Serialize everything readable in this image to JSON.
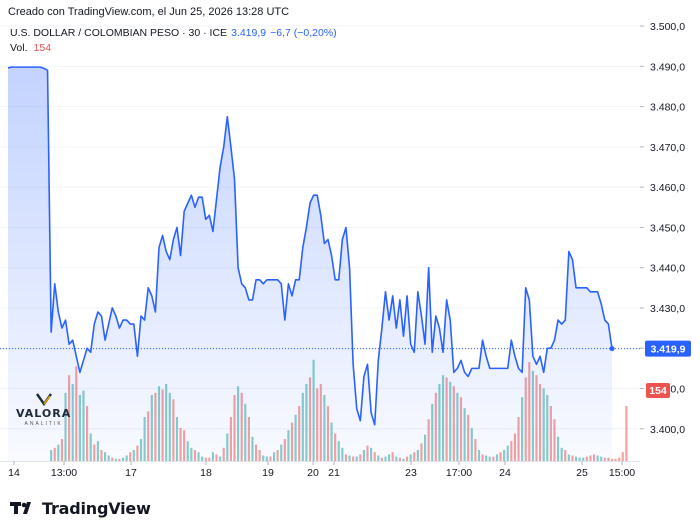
{
  "header": {
    "created_text": "Creado con TradingView.com, el Jun 25, 2026 13:28 UTC"
  },
  "symbol": {
    "title": "U.S. DOLLAR / COLOMBIAN PESO · 30 · ICE",
    "price": "3.419,9",
    "change": "−6,7 (−0,20%)"
  },
  "volume": {
    "label": "Vol.",
    "value": "154"
  },
  "watermark": {
    "name": "VALORA",
    "sub": "ANALITIK"
  },
  "footer": {
    "brand": "TradingView"
  },
  "colors": {
    "line": "#2962ff",
    "up_volume": "#26a69a",
    "down_volume": "#ef5350",
    "price_label_bg": "#2962ff",
    "volume_label_bg": "#ef5350"
  },
  "chart_data": {
    "type": "area",
    "title": "U.S. DOLLAR / COLOMBIAN PESO · 30 · ICE",
    "ylim": [
      3392,
      3502
    ],
    "y_ticks": [
      "3.400,0",
      "3.410,0",
      "3.420,0",
      "3.430,0",
      "3.440,0",
      "3.450,0",
      "3.460,0",
      "3.470,0",
      "3.480,0",
      "3.490,0",
      "3.500,0"
    ],
    "y_tick_values": [
      3400,
      3410,
      3420,
      3430,
      3440,
      3450,
      3460,
      3470,
      3480,
      3490,
      3500
    ],
    "x_ticks": [
      "14",
      "13:00",
      "17",
      "18",
      "19",
      "20",
      "21",
      "23",
      "17:00",
      "24",
      "25",
      "15:00"
    ],
    "last_price_label": "3.419,9",
    "last_price": 3419.9,
    "last_volume_label": "154",
    "series": [
      {
        "name": "Close",
        "values": [
          3489.6,
          3489.8,
          3489.8,
          3489.8,
          3489.8,
          3489.8,
          3489.8,
          3489.8,
          3489.8,
          3489.8,
          3489.5,
          3489.0,
          3424.0,
          3436.0,
          3429.0,
          3425.0,
          3427.0,
          3421.0,
          3422.0,
          3418.0,
          3414.0,
          3417.0,
          3420.0,
          3419.0,
          3426.0,
          3429.0,
          3428.0,
          3422.0,
          3426.0,
          3430.0,
          3428.0,
          3425.0,
          3427.0,
          3427.0,
          3426.0,
          3426.0,
          3418.0,
          3428.0,
          3427.0,
          3435.0,
          3433.0,
          3429.0,
          3445.0,
          3448.0,
          3444.0,
          3442.0,
          3447.0,
          3450.0,
          3443.0,
          3454.0,
          3456.0,
          3458.0,
          3455.0,
          3457.5,
          3457.5,
          3452.0,
          3453.0,
          3449.0,
          3457.0,
          3465.0,
          3470.0,
          3477.5,
          3470.0,
          3462.0,
          3440.0,
          3436.0,
          3435.0,
          3432.0,
          3432.0,
          3437.0,
          3437.0,
          3436.0,
          3437.0,
          3437.0,
          3437.0,
          3437.0,
          3436.0,
          3427.0,
          3436.0,
          3433.0,
          3437.0,
          3437.0,
          3445.0,
          3450.0,
          3456.0,
          3458.0,
          3458.0,
          3453.0,
          3446.0,
          3447.0,
          3443.0,
          3437.0,
          3437.0,
          3447.0,
          3450.0,
          3440.0,
          3416.0,
          3405.0,
          3402.0,
          3413.0,
          3416.0,
          3404.0,
          3401.0,
          3417.0,
          3425.0,
          3434.0,
          3427.0,
          3433.0,
          3425.0,
          3432.0,
          3423.0,
          3433.0,
          3421.0,
          3419.0,
          3434.0,
          3428.0,
          3421.0,
          3440.0,
          3419.0,
          3428.0,
          3425.0,
          3419.0,
          3432.0,
          3427.0,
          3414.0,
          3415.0,
          3417.0,
          3414.0,
          3413.0,
          3415.0,
          3415.0,
          3415.0,
          3422.0,
          3418.0,
          3415.0,
          3415.0,
          3415.0,
          3415.0,
          3415.0,
          3415.0,
          3422.0,
          3418.0,
          3415.0,
          3414.0,
          3435.0,
          3432.0,
          3418.0,
          3416.0,
          3418.0,
          3414.0,
          3420.0,
          3420.0,
          3422.0,
          3427.0,
          3426.0,
          3427.0,
          3444.0,
          3442.0,
          3435.0,
          3435.0,
          3435.0,
          3435.0,
          3434.0,
          3434.0,
          3434.0,
          3431.0,
          3427.0,
          3426.0,
          3419.9
        ]
      }
    ],
    "volume_values": [
      0,
      0,
      0,
      0,
      0,
      0,
      0,
      0,
      0,
      0,
      0,
      0,
      10,
      12,
      15,
      20,
      62,
      78,
      70,
      86,
      60,
      64,
      50,
      25,
      15,
      18,
      10,
      8,
      5,
      3,
      2,
      2,
      3,
      5,
      8,
      10,
      14,
      20,
      40,
      45,
      60,
      62,
      68,
      65,
      70,
      62,
      56,
      40,
      30,
      28,
      18,
      12,
      10,
      8,
      4,
      3,
      3,
      8,
      6,
      4,
      12,
      25,
      40,
      60,
      68,
      62,
      52,
      40,
      22,
      15,
      10,
      5,
      4,
      4,
      8,
      10,
      15,
      20,
      28,
      35,
      42,
      50,
      62,
      70,
      76,
      92,
      66,
      70,
      60,
      50,
      35,
      25,
      18,
      12,
      6,
      5,
      4,
      4,
      6,
      10,
      14,
      12,
      8,
      5,
      3,
      4,
      6,
      8,
      4,
      3,
      2,
      4,
      6,
      8,
      10,
      16,
      24,
      38,
      52,
      62,
      70,
      78,
      76,
      72,
      68,
      62,
      58,
      48,
      42,
      30,
      20,
      10,
      6,
      5,
      4,
      4,
      6,
      8,
      10,
      14,
      18,
      25,
      40,
      58,
      76,
      90,
      82,
      78,
      70,
      66,
      60,
      50,
      38,
      22,
      12,
      10,
      6,
      5,
      4,
      3,
      3,
      4,
      5,
      6,
      5,
      4,
      3,
      3,
      2,
      2,
      3,
      8,
      50
    ],
    "volume_up": [
      1,
      1,
      1,
      1,
      1,
      1,
      1,
      1,
      1,
      1,
      1,
      1,
      1,
      0,
      1,
      0,
      1,
      0,
      1,
      0,
      1,
      1,
      0,
      1,
      0,
      1,
      0,
      1,
      1,
      0,
      1,
      0,
      1,
      1,
      0,
      1,
      0,
      1,
      1,
      0,
      1,
      0,
      1,
      0,
      1,
      1,
      0,
      1,
      0,
      0,
      1,
      1,
      0,
      1,
      1,
      0,
      0,
      1,
      0,
      1,
      0,
      1,
      0,
      0,
      1,
      0,
      1,
      0,
      1,
      0,
      0,
      1,
      1,
      0,
      1,
      0,
      1,
      0,
      1,
      0,
      1,
      0,
      1,
      1,
      0,
      1,
      0,
      0,
      1,
      0,
      1,
      0,
      1,
      1,
      0,
      1,
      0,
      1,
      0,
      1,
      0,
      1,
      0,
      1,
      0,
      1,
      1,
      0,
      1,
      0,
      1,
      0,
      1,
      0,
      1,
      0,
      1,
      0,
      1,
      0,
      1,
      1,
      0,
      1,
      0,
      1,
      0,
      1,
      0,
      1,
      0,
      1,
      0,
      1,
      1,
      0,
      1,
      0,
      1,
      1,
      0,
      0,
      0,
      1,
      0,
      0,
      1,
      0,
      0,
      1,
      1,
      0,
      0,
      1,
      1,
      0,
      1,
      0,
      1,
      1,
      1,
      0,
      0,
      0,
      1,
      1,
      0,
      0,
      0
    ]
  }
}
